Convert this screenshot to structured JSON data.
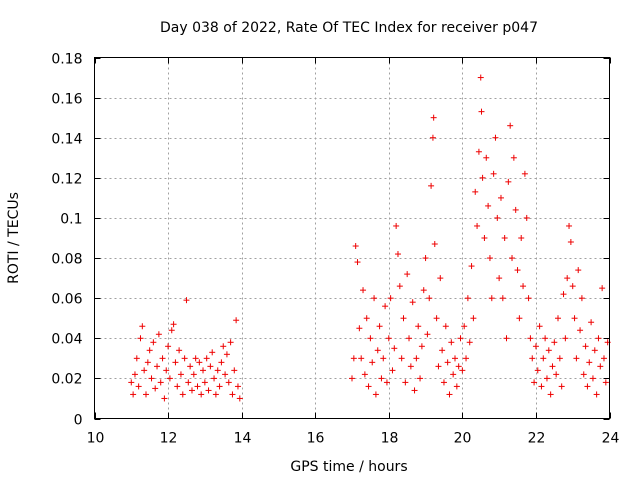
{
  "chart_data": {
    "type": "scatter",
    "title": "Day 038 of 2022, Rate Of TEC Index for receiver p047",
    "xlabel": "GPS time / hours",
    "ylabel": "ROTI / TECUs",
    "xlim": [
      10,
      24
    ],
    "ylim": [
      0,
      0.18
    ],
    "xticks": [
      "10",
      "12",
      "14",
      "16",
      "18",
      "20",
      "22",
      "24"
    ],
    "yticks": [
      "0",
      "0.02",
      "0.04",
      "0.06",
      "0.08",
      "0.1",
      "0.12",
      "0.14",
      "0.16",
      "0.18"
    ],
    "grid": true,
    "marker": "+",
    "color": "#ee0000",
    "series": [
      {
        "name": "ROTI",
        "points": [
          [
            11.0,
            0.018
          ],
          [
            11.05,
            0.012
          ],
          [
            11.1,
            0.022
          ],
          [
            11.15,
            0.03
          ],
          [
            11.2,
            0.016
          ],
          [
            11.25,
            0.04
          ],
          [
            11.3,
            0.046
          ],
          [
            11.35,
            0.024
          ],
          [
            11.4,
            0.012
          ],
          [
            11.45,
            0.028
          ],
          [
            11.5,
            0.034
          ],
          [
            11.55,
            0.02
          ],
          [
            11.6,
            0.038
          ],
          [
            11.65,
            0.015
          ],
          [
            11.7,
            0.026
          ],
          [
            11.75,
            0.042
          ],
          [
            11.8,
            0.018
          ],
          [
            11.85,
            0.03
          ],
          [
            11.9,
            0.01
          ],
          [
            11.95,
            0.024
          ],
          [
            12.0,
            0.036
          ],
          [
            12.05,
            0.02
          ],
          [
            12.1,
            0.044
          ],
          [
            12.15,
            0.047
          ],
          [
            12.2,
            0.028
          ],
          [
            12.25,
            0.016
          ],
          [
            12.3,
            0.034
          ],
          [
            12.35,
            0.022
          ],
          [
            12.4,
            0.012
          ],
          [
            12.45,
            0.03
          ],
          [
            12.5,
            0.059
          ],
          [
            12.55,
            0.018
          ],
          [
            12.6,
            0.026
          ],
          [
            12.65,
            0.014
          ],
          [
            12.7,
            0.022
          ],
          [
            12.75,
            0.03
          ],
          [
            12.8,
            0.016
          ],
          [
            12.85,
            0.028
          ],
          [
            12.9,
            0.012
          ],
          [
            12.95,
            0.024
          ],
          [
            13.0,
            0.018
          ],
          [
            13.05,
            0.03
          ],
          [
            13.1,
            0.014
          ],
          [
            13.15,
            0.026
          ],
          [
            13.2,
            0.033
          ],
          [
            13.25,
            0.02
          ],
          [
            13.3,
            0.012
          ],
          [
            13.35,
            0.024
          ],
          [
            13.4,
            0.016
          ],
          [
            13.45,
            0.028
          ],
          [
            13.5,
            0.036
          ],
          [
            13.55,
            0.022
          ],
          [
            13.6,
            0.032
          ],
          [
            13.65,
            0.018
          ],
          [
            13.7,
            0.038
          ],
          [
            13.75,
            0.012
          ],
          [
            13.8,
            0.024
          ],
          [
            13.85,
            0.049
          ],
          [
            13.9,
            0.016
          ],
          [
            13.95,
            0.01
          ],
          [
            17.0,
            0.02
          ],
          [
            17.05,
            0.03
          ],
          [
            17.1,
            0.086
          ],
          [
            17.15,
            0.078
          ],
          [
            17.2,
            0.045
          ],
          [
            17.25,
            0.03
          ],
          [
            17.3,
            0.064
          ],
          [
            17.35,
            0.022
          ],
          [
            17.4,
            0.05
          ],
          [
            17.45,
            0.016
          ],
          [
            17.5,
            0.04
          ],
          [
            17.55,
            0.028
          ],
          [
            17.6,
            0.06
          ],
          [
            17.65,
            0.012
          ],
          [
            17.7,
            0.034
          ],
          [
            17.75,
            0.046
          ],
          [
            17.8,
            0.02
          ],
          [
            17.85,
            0.03
          ],
          [
            17.9,
            0.056
          ],
          [
            17.95,
            0.018
          ],
          [
            18.0,
            0.04
          ],
          [
            18.05,
            0.06
          ],
          [
            18.1,
            0.024
          ],
          [
            18.15,
            0.035
          ],
          [
            18.2,
            0.096
          ],
          [
            18.25,
            0.082
          ],
          [
            18.3,
            0.066
          ],
          [
            18.35,
            0.03
          ],
          [
            18.4,
            0.05
          ],
          [
            18.45,
            0.018
          ],
          [
            18.5,
            0.072
          ],
          [
            18.55,
            0.04
          ],
          [
            18.6,
            0.026
          ],
          [
            18.65,
            0.058
          ],
          [
            18.7,
            0.014
          ],
          [
            18.75,
            0.03
          ],
          [
            18.8,
            0.046
          ],
          [
            18.85,
            0.02
          ],
          [
            18.9,
            0.036
          ],
          [
            18.95,
            0.064
          ],
          [
            19.0,
            0.08
          ],
          [
            19.05,
            0.042
          ],
          [
            19.1,
            0.06
          ],
          [
            19.15,
            0.116
          ],
          [
            19.2,
            0.14
          ],
          [
            19.22,
            0.15
          ],
          [
            19.25,
            0.087
          ],
          [
            19.3,
            0.05
          ],
          [
            19.35,
            0.026
          ],
          [
            19.4,
            0.07
          ],
          [
            19.45,
            0.034
          ],
          [
            19.5,
            0.018
          ],
          [
            19.55,
            0.046
          ],
          [
            19.6,
            0.028
          ],
          [
            19.65,
            0.012
          ],
          [
            19.7,
            0.038
          ],
          [
            19.75,
            0.022
          ],
          [
            19.8,
            0.03
          ],
          [
            19.85,
            0.016
          ],
          [
            19.9,
            0.026
          ],
          [
            19.95,
            0.04
          ],
          [
            20.0,
            0.024
          ],
          [
            20.05,
            0.046
          ],
          [
            20.1,
            0.03
          ],
          [
            20.15,
            0.06
          ],
          [
            20.2,
            0.038
          ],
          [
            20.25,
            0.076
          ],
          [
            20.3,
            0.05
          ],
          [
            20.35,
            0.113
          ],
          [
            20.4,
            0.096
          ],
          [
            20.45,
            0.133
          ],
          [
            20.5,
            0.17
          ],
          [
            20.52,
            0.153
          ],
          [
            20.55,
            0.12
          ],
          [
            20.6,
            0.09
          ],
          [
            20.65,
            0.13
          ],
          [
            20.7,
            0.106
          ],
          [
            20.75,
            0.08
          ],
          [
            20.8,
            0.06
          ],
          [
            20.85,
            0.122
          ],
          [
            20.9,
            0.14
          ],
          [
            20.95,
            0.1
          ],
          [
            21.0,
            0.07
          ],
          [
            21.05,
            0.11
          ],
          [
            21.1,
            0.06
          ],
          [
            21.15,
            0.09
          ],
          [
            21.2,
            0.04
          ],
          [
            21.25,
            0.118
          ],
          [
            21.3,
            0.146
          ],
          [
            21.35,
            0.08
          ],
          [
            21.4,
            0.13
          ],
          [
            21.45,
            0.104
          ],
          [
            21.5,
            0.074
          ],
          [
            21.55,
            0.05
          ],
          [
            21.6,
            0.09
          ],
          [
            21.65,
            0.066
          ],
          [
            21.7,
            0.122
          ],
          [
            21.75,
            0.1
          ],
          [
            21.8,
            0.06
          ],
          [
            21.85,
            0.04
          ],
          [
            21.9,
            0.03
          ],
          [
            21.95,
            0.018
          ],
          [
            22.0,
            0.036
          ],
          [
            22.05,
            0.024
          ],
          [
            22.1,
            0.046
          ],
          [
            22.15,
            0.016
          ],
          [
            22.2,
            0.03
          ],
          [
            22.25,
            0.04
          ],
          [
            22.3,
            0.02
          ],
          [
            22.35,
            0.034
          ],
          [
            22.4,
            0.012
          ],
          [
            22.45,
            0.026
          ],
          [
            22.5,
            0.038
          ],
          [
            22.55,
            0.022
          ],
          [
            22.6,
            0.05
          ],
          [
            22.65,
            0.03
          ],
          [
            22.7,
            0.016
          ],
          [
            22.75,
            0.062
          ],
          [
            22.8,
            0.04
          ],
          [
            22.85,
            0.07
          ],
          [
            22.9,
            0.096
          ],
          [
            22.95,
            0.088
          ],
          [
            23.0,
            0.066
          ],
          [
            23.05,
            0.05
          ],
          [
            23.1,
            0.03
          ],
          [
            23.15,
            0.074
          ],
          [
            23.2,
            0.044
          ],
          [
            23.25,
            0.06
          ],
          [
            23.3,
            0.022
          ],
          [
            23.35,
            0.036
          ],
          [
            23.4,
            0.016
          ],
          [
            23.45,
            0.028
          ],
          [
            23.5,
            0.048
          ],
          [
            23.55,
            0.02
          ],
          [
            23.6,
            0.034
          ],
          [
            23.65,
            0.012
          ],
          [
            23.7,
            0.04
          ],
          [
            23.75,
            0.026
          ],
          [
            23.8,
            0.065
          ],
          [
            23.85,
            0.03
          ],
          [
            23.9,
            0.018
          ],
          [
            23.95,
            0.038
          ]
        ]
      }
    ]
  }
}
